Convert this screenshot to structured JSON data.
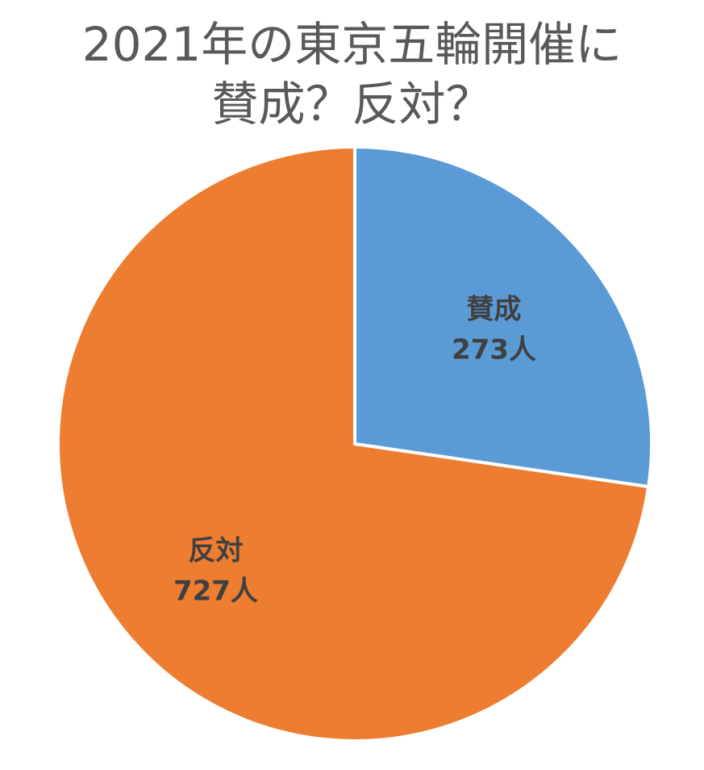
{
  "chart_data": {
    "type": "pie",
    "title_lines": [
      "2021年の東京五輪開催に",
      "賛成？反対？"
    ],
    "categories": [
      "賛成",
      "反対"
    ],
    "values": [
      273,
      727
    ],
    "value_labels": [
      "273人",
      "727人"
    ],
    "colors": [
      "#5B9BD5",
      "#ED7D31"
    ],
    "start_angle": "12 o'clock",
    "direction": "clockwise",
    "legend": "none"
  }
}
